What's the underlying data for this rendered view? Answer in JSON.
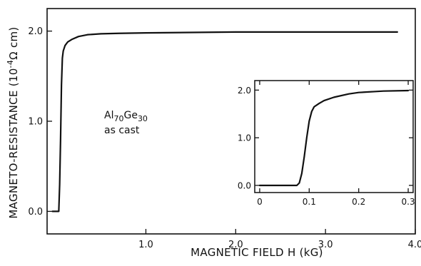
{
  "chart_data": [
    {
      "type": "line",
      "role": "main",
      "title": "",
      "xlabel": "MAGNETIC FIELD H (kG)",
      "ylabel": "MAGNETO-RESISTANCE (10",
      "ylabel_exp": "-4",
      "ylabel_unit": "Ω cm)",
      "xlim": [
        -0.1,
        4.0
      ],
      "ylim": [
        -0.25,
        2.25
      ],
      "x_ticks": [
        1.0,
        2.0,
        3.0,
        4.0
      ],
      "x_tick_labels": [
        "1.0",
        "2.0",
        "3.0",
        "4.0"
      ],
      "y_ticks": [
        0.0,
        1.0,
        2.0
      ],
      "y_tick_labels": [
        "0.0",
        "1.0",
        "2.0"
      ],
      "grid": false,
      "annotation": {
        "base": "Al",
        "sub1": "70",
        "mid": "Ge",
        "sub2": "30",
        "line2": "as cast"
      },
      "series": [
        {
          "x": [
            -0.04,
            0.0,
            0.03,
            0.04,
            0.05,
            0.06,
            0.07,
            0.08,
            0.1,
            0.13,
            0.18,
            0.25,
            0.35,
            0.5,
            0.7,
            1.0,
            1.5,
            2.0,
            3.0,
            3.8
          ],
          "y": [
            0.0,
            0.0,
            0.0,
            0.3,
            0.8,
            1.4,
            1.7,
            1.78,
            1.84,
            1.88,
            1.91,
            1.94,
            1.96,
            1.97,
            1.975,
            1.98,
            1.985,
            1.99,
            1.99,
            1.99
          ]
        }
      ]
    },
    {
      "type": "line",
      "role": "inset",
      "xlim": [
        -0.01,
        0.31
      ],
      "ylim": [
        -0.15,
        2.2
      ],
      "x_ticks": [
        0,
        0.1,
        0.2,
        0.3
      ],
      "x_tick_labels": [
        "0",
        "0.1",
        "0.2",
        "0.3"
      ],
      "y_ticks": [
        0.0,
        1.0,
        2.0
      ],
      "y_tick_labels": [
        "0.0",
        "1.0",
        "2.0"
      ],
      "grid": false,
      "series": [
        {
          "x": [
            0.0,
            0.05,
            0.075,
            0.08,
            0.085,
            0.09,
            0.095,
            0.1,
            0.105,
            0.11,
            0.12,
            0.13,
            0.15,
            0.18,
            0.2,
            0.25,
            0.3
          ],
          "y": [
            0.0,
            0.0,
            0.0,
            0.05,
            0.25,
            0.6,
            1.0,
            1.35,
            1.55,
            1.65,
            1.72,
            1.78,
            1.85,
            1.92,
            1.95,
            1.98,
            1.99
          ]
        }
      ]
    }
  ]
}
